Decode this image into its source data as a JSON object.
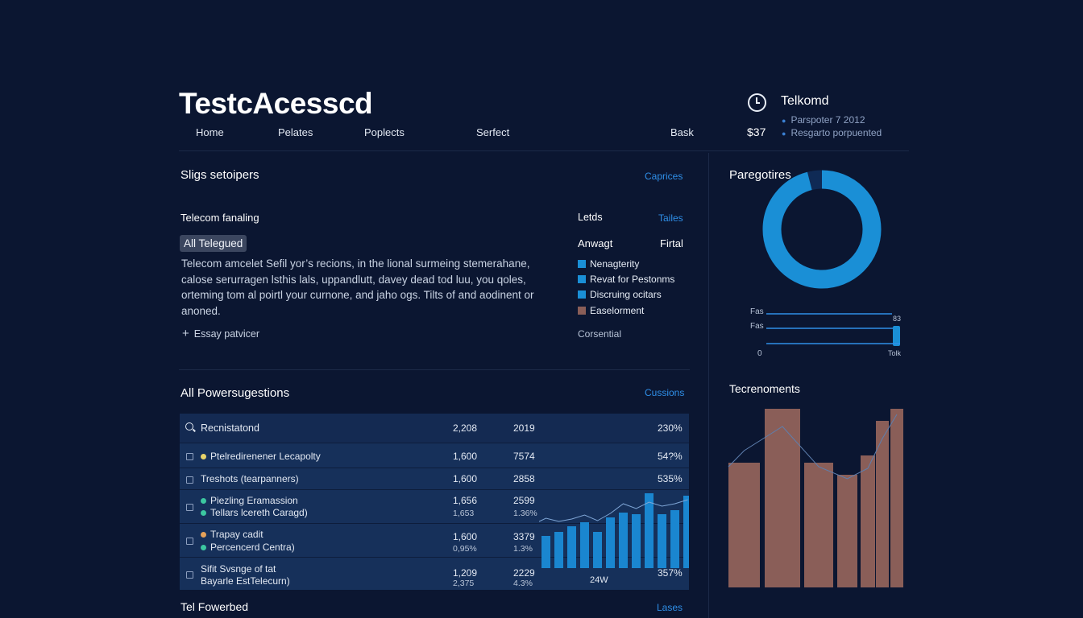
{
  "app": {
    "title": "TestcAcesscd"
  },
  "nav": [
    "Home",
    "Pelates",
    "Poplects",
    "Serfect",
    "Bask"
  ],
  "user": {
    "name": "Telkomd",
    "meta1": "Parspoter 7 2012",
    "meta2": "Resgarto porpuented",
    "price": "$37"
  },
  "section1": {
    "title": "Sligs setoipers",
    "link": "Caprices",
    "subtitle": "Telecom fanaling",
    "badge": "All Telegued",
    "paragraph": "Telecom amcelet Sefil yor’s recions, in the lional surmeing stemerahane, calose serurragen lsthis lals, uppandlutt, davey dead tod luu, you qoles, orteming tom al poirtl your curnone, and jaho ogs. Tilts of and aodinent or anoned.",
    "add_label": "Essay patvicer",
    "col_left": "Letds",
    "col_right": "Tailes",
    "row_left": "Anwagt",
    "row_right": "Firtal",
    "legend": [
      {
        "label": "Nenagterity",
        "color": "#1a8fd6"
      },
      {
        "label": "Revat for Pestonms",
        "color": "#1a8fd6"
      },
      {
        "label": "Discruing ocitars",
        "color": "#1a8fd6"
      },
      {
        "label": "Easelorment",
        "color": "#8a5e58"
      }
    ],
    "footer": "Corsential"
  },
  "side_top": {
    "title": "Paregotires",
    "donut_color": "#1a8fd6",
    "donut_fraction": 0.96,
    "bars": [
      {
        "label": "Fas",
        "value_label": ""
      },
      {
        "label": "Fas",
        "value_label": "83"
      }
    ],
    "axis_start": "0",
    "axis_end": "Tolk"
  },
  "section2": {
    "title": "All Powersugestions",
    "link": "Cussions",
    "header": {
      "name": "Recnistatond",
      "c1": "2,208",
      "c2": "2019",
      "c3": "230%"
    },
    "rows": [
      {
        "lines": [
          {
            "text": "Ptelredirenener Lecapolty",
            "dot": "#e8d36a"
          }
        ],
        "c1": "1,600",
        "c2": "7574",
        "c3": "54?%"
      },
      {
        "lines": [
          {
            "text": "Treshots (tearpanners)",
            "dot": ""
          }
        ],
        "c1": "1,600",
        "c2": "2858",
        "c3": "535%"
      },
      {
        "lines": [
          {
            "text": "Piezling Eramassion",
            "dot": "#3cc7a0"
          },
          {
            "text": "Tellars lcereth Caragd)",
            "dot": "#3cc7a0"
          }
        ],
        "c1": "1,656",
        "c1b": "1,653",
        "c2": "2599",
        "c2b": "1.36%",
        "c3": ""
      },
      {
        "lines": [
          {
            "text": "Trapay cadit",
            "dot": "#e5a159"
          },
          {
            "text": "Percencerd Centra)",
            "dot": "#3cc7a0"
          }
        ],
        "c1": "1,600",
        "c1b": "0,95%",
        "c2": "3379",
        "c2b": "1.3%",
        "c3": ""
      },
      {
        "lines": [
          {
            "text": "Sifit Svsnge of tat",
            "dot": ""
          },
          {
            "text": "Bayarle EstTelecurn)",
            "dot": ""
          }
        ],
        "c1": "1,209",
        "c1b": "2,375",
        "c2": "2229",
        "c2b": "4.3%",
        "c3": "357%"
      }
    ],
    "chart_label": "24W",
    "chart_bars": [
      40,
      45,
      52,
      57,
      45,
      63,
      69,
      67,
      93,
      67,
      72,
      90
    ],
    "chart_line": [
      62,
      58,
      61,
      66,
      59,
      68,
      80,
      74,
      82,
      77,
      80,
      85
    ]
  },
  "side_bottom": {
    "title": "Tecrenoments",
    "bar_color": "#8a5e58",
    "bars": [
      155,
      222,
      155,
      140,
      164,
      207,
      222
    ],
    "line": [
      170,
      200,
      150,
      135,
      148,
      185,
      215
    ]
  },
  "footer": {
    "title": "Tel Fowerbed",
    "link": "Lases"
  }
}
